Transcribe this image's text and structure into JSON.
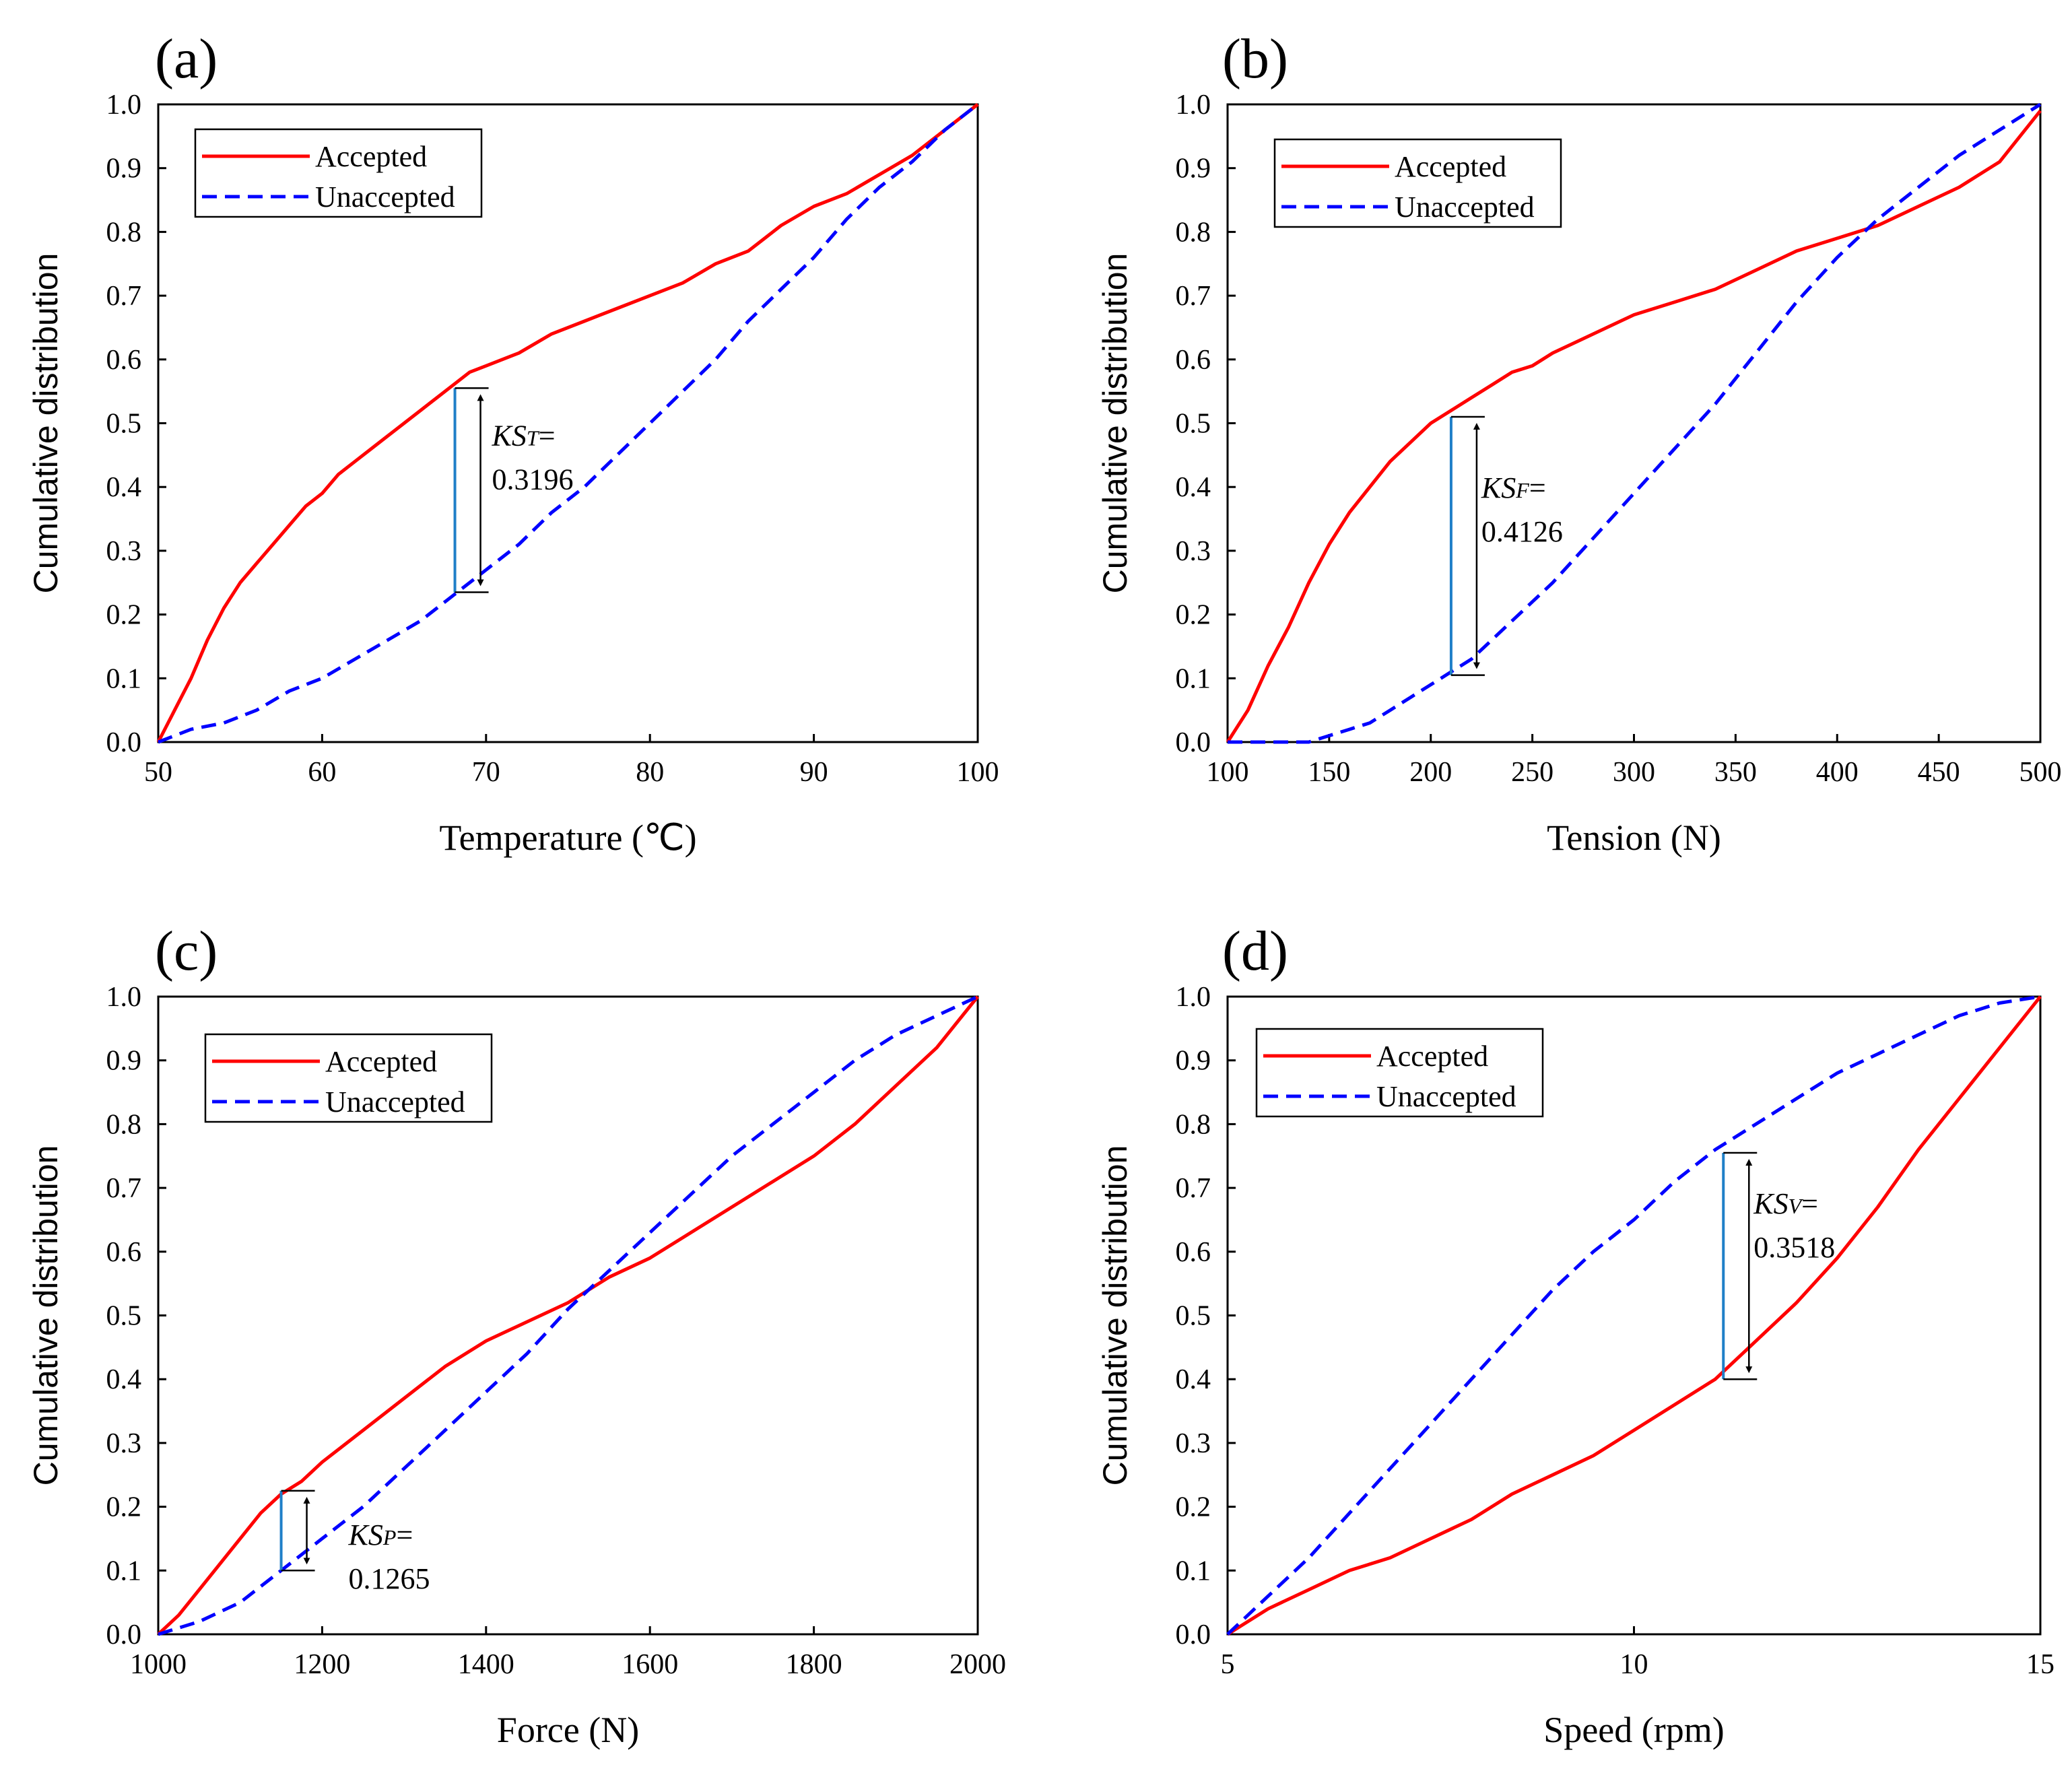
{
  "figure": {
    "legend_labels": {
      "accepted": "Accepted",
      "unaccepted": "Unaccepted"
    },
    "colors": {
      "accepted": "#ff0000",
      "unaccepted": "#0000ff",
      "ks_line": "#1f7fc8",
      "axis": "#000000"
    }
  },
  "chart_data": [
    {
      "panel": "(a)",
      "type": "line",
      "xlabel": "Temperature (℃)",
      "ylabel": "Cumulative distribution",
      "xlim": [
        50,
        100
      ],
      "ylim": [
        0,
        1
      ],
      "xticks": [
        50,
        60,
        70,
        80,
        90,
        100
      ],
      "yticks": [
        0.0,
        0.1,
        0.2,
        0.3,
        0.4,
        0.5,
        0.6,
        0.7,
        0.8,
        0.9,
        1.0
      ],
      "legend_position": "top-left",
      "series": [
        {
          "name": "Accepted",
          "x": [
            50,
            51,
            52,
            53,
            54,
            55,
            56,
            57,
            58,
            59,
            60,
            61,
            62,
            63,
            64,
            65,
            66,
            67,
            68,
            69,
            70,
            72,
            74,
            76,
            78,
            80,
            82,
            84,
            86,
            87,
            88,
            90,
            92,
            94,
            96,
            98,
            100
          ],
          "y": [
            0.0,
            0.05,
            0.1,
            0.16,
            0.21,
            0.25,
            0.28,
            0.31,
            0.34,
            0.37,
            0.39,
            0.42,
            0.44,
            0.46,
            0.48,
            0.5,
            0.52,
            0.54,
            0.56,
            0.58,
            0.59,
            0.61,
            0.64,
            0.66,
            0.68,
            0.7,
            0.72,
            0.75,
            0.77,
            0.79,
            0.81,
            0.84,
            0.86,
            0.89,
            0.92,
            0.96,
            1.0
          ]
        },
        {
          "name": "Unaccepted",
          "x": [
            50,
            52,
            54,
            56,
            58,
            60,
            62,
            64,
            66,
            68,
            70,
            72,
            74,
            76,
            78,
            80,
            82,
            84,
            86,
            88,
            90,
            92,
            94,
            96,
            98,
            100
          ],
          "y": [
            0.0,
            0.02,
            0.03,
            0.05,
            0.08,
            0.1,
            0.13,
            0.16,
            0.19,
            0.23,
            0.27,
            0.31,
            0.36,
            0.4,
            0.45,
            0.5,
            0.55,
            0.6,
            0.66,
            0.71,
            0.76,
            0.82,
            0.87,
            0.91,
            0.96,
            1.0
          ]
        }
      ],
      "ks": {
        "label": "KS",
        "subscript": "T",
        "eq": "=",
        "value": "0.3196",
        "x": 68.1,
        "y_top": 0.555,
        "y_bottom": 0.235
      }
    },
    {
      "panel": "(b)",
      "type": "line",
      "xlabel": "Tension (N)",
      "ylabel": "Cumulative distribution",
      "xlim": [
        100,
        500
      ],
      "ylim": [
        0,
        1
      ],
      "xticks": [
        100,
        150,
        200,
        250,
        300,
        350,
        400,
        450,
        500
      ],
      "yticks": [
        0.0,
        0.1,
        0.2,
        0.3,
        0.4,
        0.5,
        0.6,
        0.7,
        0.8,
        0.9,
        1.0
      ],
      "legend_position": "top-left",
      "series": [
        {
          "name": "Accepted",
          "x": [
            100,
            110,
            120,
            130,
            140,
            150,
            160,
            170,
            180,
            190,
            200,
            210,
            220,
            230,
            240,
            250,
            260,
            280,
            300,
            320,
            340,
            360,
            380,
            400,
            420,
            440,
            460,
            480,
            500
          ],
          "y": [
            0.0,
            0.05,
            0.12,
            0.18,
            0.25,
            0.31,
            0.36,
            0.4,
            0.44,
            0.47,
            0.5,
            0.52,
            0.54,
            0.56,
            0.58,
            0.59,
            0.61,
            0.64,
            0.67,
            0.69,
            0.71,
            0.74,
            0.77,
            0.79,
            0.81,
            0.84,
            0.87,
            0.91,
            0.99
          ]
        },
        {
          "name": "Unaccepted",
          "x": [
            100,
            120,
            140,
            150,
            160,
            170,
            180,
            190,
            200,
            210,
            220,
            230,
            240,
            250,
            260,
            280,
            300,
            320,
            340,
            360,
            380,
            400,
            420,
            440,
            460,
            480,
            500
          ],
          "y": [
            0.0,
            0.0,
            0.0,
            0.01,
            0.02,
            0.03,
            0.05,
            0.07,
            0.09,
            0.11,
            0.13,
            0.16,
            0.19,
            0.22,
            0.25,
            0.32,
            0.39,
            0.46,
            0.53,
            0.61,
            0.69,
            0.76,
            0.82,
            0.87,
            0.92,
            0.96,
            1.0
          ]
        }
      ],
      "ks": {
        "label": "KS",
        "subscript": "F",
        "eq": "=",
        "value": "0.4126",
        "x": 210,
        "y_top": 0.51,
        "y_bottom": 0.105
      }
    },
    {
      "panel": "(c)",
      "type": "line",
      "xlabel": "Force (N)",
      "ylabel": "Cumulative distribution",
      "xlim": [
        1000,
        2000
      ],
      "ylim": [
        0,
        1
      ],
      "xticks": [
        1000,
        1200,
        1400,
        1600,
        1800,
        2000
      ],
      "yticks": [
        0.0,
        0.1,
        0.2,
        0.3,
        0.4,
        0.5,
        0.6,
        0.7,
        0.8,
        0.9,
        1.0
      ],
      "legend_position": "top-left",
      "series": [
        {
          "name": "Accepted",
          "x": [
            1000,
            1025,
            1050,
            1075,
            1100,
            1125,
            1150,
            1175,
            1200,
            1250,
            1300,
            1350,
            1400,
            1450,
            1500,
            1550,
            1600,
            1650,
            1700,
            1750,
            1800,
            1850,
            1900,
            1950,
            2000
          ],
          "y": [
            0.0,
            0.03,
            0.07,
            0.11,
            0.15,
            0.19,
            0.22,
            0.24,
            0.27,
            0.32,
            0.37,
            0.42,
            0.46,
            0.49,
            0.52,
            0.56,
            0.59,
            0.63,
            0.67,
            0.71,
            0.75,
            0.8,
            0.86,
            0.92,
            1.0
          ]
        },
        {
          "name": "Unaccepted",
          "x": [
            1000,
            1050,
            1100,
            1150,
            1200,
            1250,
            1300,
            1350,
            1400,
            1450,
            1500,
            1550,
            1600,
            1650,
            1700,
            1750,
            1800,
            1850,
            1900,
            1950,
            2000
          ],
          "y": [
            0.0,
            0.02,
            0.05,
            0.1,
            0.15,
            0.2,
            0.26,
            0.32,
            0.38,
            0.44,
            0.51,
            0.57,
            0.63,
            0.69,
            0.75,
            0.8,
            0.85,
            0.9,
            0.94,
            0.97,
            1.0
          ]
        }
      ],
      "ks": {
        "label": "KS",
        "subscript": "P",
        "eq": "=",
        "value": "0.1265",
        "x": 1150,
        "y_top": 0.225,
        "y_bottom": 0.1
      }
    },
    {
      "panel": "(d)",
      "type": "line",
      "xlabel": "Speed (rpm)",
      "ylabel": "Cumulative distribution",
      "xlim": [
        5,
        15
      ],
      "ylim": [
        0,
        1
      ],
      "xticks": [
        5,
        10,
        15
      ],
      "yticks": [
        0.0,
        0.1,
        0.2,
        0.3,
        0.4,
        0.5,
        0.6,
        0.7,
        0.8,
        0.9,
        1.0
      ],
      "legend_position": "top-left",
      "series": [
        {
          "name": "Accepted",
          "x": [
            5,
            5.5,
            6,
            6.5,
            7,
            7.5,
            8,
            8.5,
            9,
            9.5,
            10,
            10.5,
            11,
            11.5,
            12,
            12.5,
            13,
            13.5,
            14,
            14.5,
            15
          ],
          "y": [
            0.0,
            0.04,
            0.07,
            0.1,
            0.12,
            0.15,
            0.18,
            0.22,
            0.25,
            0.28,
            0.32,
            0.36,
            0.4,
            0.46,
            0.52,
            0.59,
            0.67,
            0.76,
            0.84,
            0.92,
            1.0
          ]
        },
        {
          "name": "Unaccepted",
          "x": [
            5,
            5.5,
            6,
            6.5,
            7,
            7.5,
            8,
            8.5,
            9,
            9.5,
            10,
            10.5,
            11,
            11.5,
            12,
            12.5,
            13,
            13.5,
            14,
            14.5,
            15
          ],
          "y": [
            0.0,
            0.06,
            0.12,
            0.19,
            0.26,
            0.33,
            0.4,
            0.47,
            0.54,
            0.6,
            0.65,
            0.71,
            0.76,
            0.8,
            0.84,
            0.88,
            0.91,
            0.94,
            0.97,
            0.99,
            1.0
          ]
        }
      ],
      "ks": {
        "label": "KS",
        "subscript": "V",
        "eq": "=",
        "value": "0.3518",
        "x": 11.1,
        "y_top": 0.755,
        "y_bottom": 0.4
      }
    }
  ]
}
